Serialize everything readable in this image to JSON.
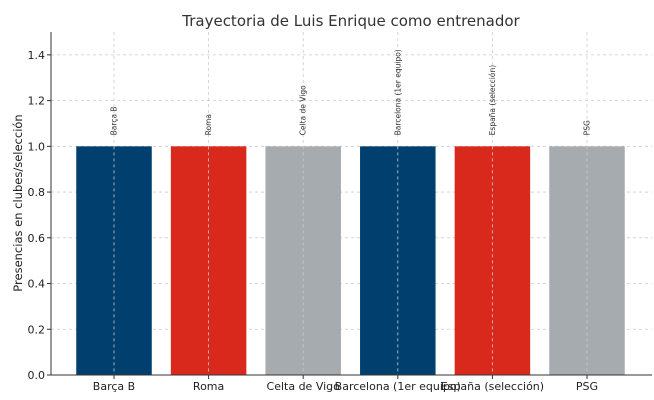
{
  "chart_data": {
    "type": "bar",
    "title": "Trayectoria de Luis Enrique como entrenador",
    "xlabel": "",
    "ylabel": "Presencias en clubes/selección",
    "categories": [
      "Barça B",
      "Roma",
      "Celta de Vigo",
      "Barcelona (1er equipo)",
      "España (selección)",
      "PSG"
    ],
    "values": [
      1.0,
      1.0,
      1.0,
      1.0,
      1.0,
      1.0
    ],
    "data_labels": [
      "Barça B",
      "Roma",
      "Celta de Vigo",
      "Barcelona (1er equipo)",
      "España (selección)",
      "PSG"
    ],
    "colors": [
      "#003f6e",
      "#d9291c",
      "#a5abaf",
      "#003f6e",
      "#d9291c",
      "#a5abaf"
    ],
    "ylim": [
      0,
      1.5
    ],
    "yticks": [
      "0.0",
      "0.2",
      "0.4",
      "0.6",
      "0.8",
      "1.0",
      "1.2",
      "1.4"
    ],
    "grid": true
  }
}
